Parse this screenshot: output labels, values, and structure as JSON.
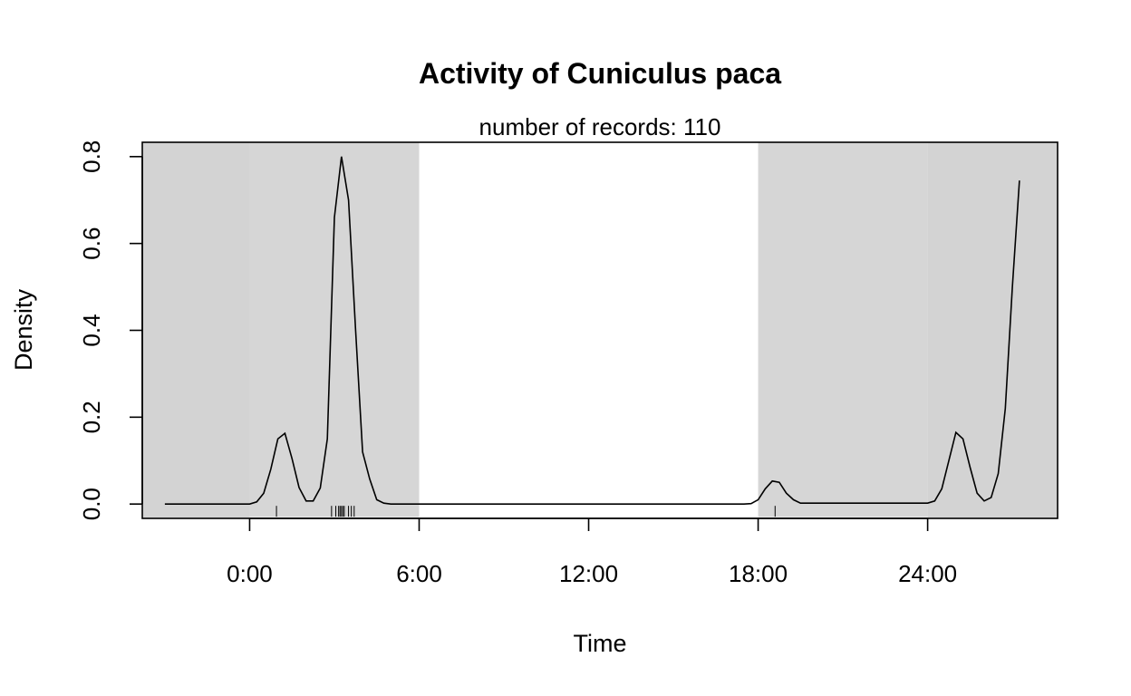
{
  "chart_data": {
    "type": "line",
    "title": "Activity of Cuniculus paca",
    "subtitle": "number of records: 110",
    "xlabel": "Time",
    "ylabel": "Density",
    "xlim": [
      -3.8,
      28.6
    ],
    "ylim": [
      -0.033,
      0.833
    ],
    "x_ticks": [
      {
        "value": 0,
        "label": "0:00"
      },
      {
        "value": 6,
        "label": "6:00"
      },
      {
        "value": 12,
        "label": "12:00"
      },
      {
        "value": 18,
        "label": "18:00"
      },
      {
        "value": 24,
        "label": "24:00"
      }
    ],
    "y_ticks": [
      {
        "value": 0,
        "label": "0.0"
      },
      {
        "value": 0.2,
        "label": "0.2"
      },
      {
        "value": 0.4,
        "label": "0.4"
      },
      {
        "value": 0.6,
        "label": "0.6"
      },
      {
        "value": 0.8,
        "label": "0.8"
      }
    ],
    "shaded_regions": [
      {
        "from": -3.8,
        "to": 0,
        "color": "#d3d3d3"
      },
      {
        "from": 0,
        "to": 6,
        "color": "#d6d6d6"
      },
      {
        "from": 18,
        "to": 24,
        "color": "#d6d6d6"
      },
      {
        "from": 24,
        "to": 28.6,
        "color": "#d3d3d3"
      }
    ],
    "series": [
      {
        "color": "#000000",
        "x": [
          -3,
          0,
          0.25,
          0.5,
          0.75,
          1.0,
          1.25,
          1.5,
          1.75,
          2.0,
          2.25,
          2.5,
          2.75,
          3.0,
          3.25,
          3.5,
          3.75,
          4.0,
          4.25,
          4.5,
          4.75,
          5.0,
          17.5,
          17.75,
          18.0,
          18.25,
          18.5,
          18.75,
          19.0,
          19.25,
          19.5,
          24.0,
          24.25,
          24.5,
          24.75,
          25.0,
          25.25,
          25.5,
          25.75,
          26.0,
          26.25,
          26.5,
          26.75,
          27.0,
          27.25
        ],
        "y": [
          0,
          0,
          0.005,
          0.025,
          0.08,
          0.15,
          0.163,
          0.105,
          0.038,
          0.007,
          0.007,
          0.037,
          0.15,
          0.66,
          0.8,
          0.7,
          0.4,
          0.12,
          0.058,
          0.01,
          0.002,
          0,
          0,
          0.001,
          0.01,
          0.035,
          0.053,
          0.05,
          0.025,
          0.01,
          0.002,
          0.002,
          0.007,
          0.035,
          0.1,
          0.165,
          0.15,
          0.085,
          0.025,
          0.007,
          0.015,
          0.07,
          0.22,
          0.5,
          0.745
        ]
      }
    ],
    "rug_x": [
      0.95,
      2.9,
      3.05,
      3.15,
      3.2,
      3.25,
      3.3,
      3.35,
      3.5,
      3.6,
      3.7,
      18.6
    ],
    "grid": false,
    "legend": "none"
  }
}
